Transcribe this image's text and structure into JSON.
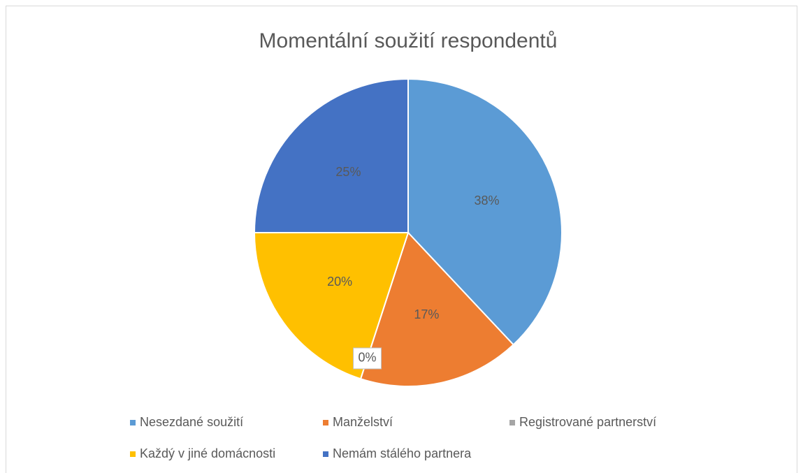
{
  "chart_data": {
    "type": "pie",
    "title": "Momentální soužití respondentů",
    "categories": [
      "Nesezdané soužití",
      "Manželství",
      "Registrované partnerství",
      "Každý v jiné domácnosti",
      "Nemám stálého partnera"
    ],
    "values": [
      38,
      17,
      0,
      20,
      25
    ],
    "value_labels": [
      "38%",
      "17%",
      "0%",
      "20%",
      "25%"
    ],
    "colors": [
      "#5b9bd5",
      "#ed7d31",
      "#a5a5a5",
      "#ffc000",
      "#4472c4"
    ],
    "legend": "bottom"
  }
}
